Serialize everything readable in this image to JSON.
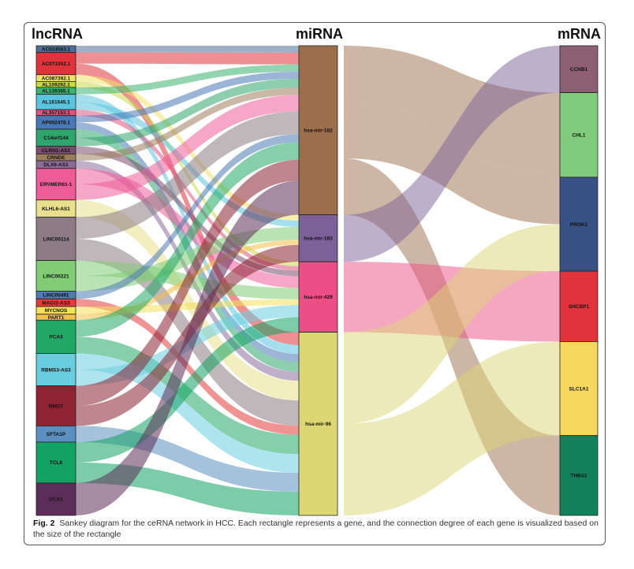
{
  "titles": {
    "lncrna": "lncRNA",
    "mirna": "miRNA",
    "mrna": "mRNA"
  },
  "caption": {
    "label": "Fig. 2",
    "text": "Sankey diagram for the ceRNA network in HCC. Each rectangle represents a gene, and the connection degree of each gene is visualized based on the size of the rectangle"
  },
  "chart_data": {
    "type": "sankey",
    "lncrna": [
      {
        "name": "AC024563.1",
        "color": "#4f6d97"
      },
      {
        "name": "AC073352.1",
        "color": "#e0333b"
      },
      {
        "name": "AC087392.1",
        "color": "#f2e06a"
      },
      {
        "name": "AL109292.1",
        "color": "#c8d84c"
      },
      {
        "name": "AL139385.1",
        "color": "#3cb371"
      },
      {
        "name": "AL161645.1",
        "color": "#5bc4df"
      },
      {
        "name": "AL357153.1",
        "color": "#e05580"
      },
      {
        "name": "AP002478.1",
        "color": "#4a78b6"
      },
      {
        "name": "C14orf144",
        "color": "#2fa56e"
      },
      {
        "name": "CLRN1-AS1",
        "color": "#7a4c6e"
      },
      {
        "name": "CRNDE",
        "color": "#9c7d5c"
      },
      {
        "name": "DLX6-AS1",
        "color": "#8c6d9a"
      },
      {
        "name": "ERVMER61-1",
        "color": "#ee5c98"
      },
      {
        "name": "KLHL6-AS1",
        "color": "#e8e08c"
      },
      {
        "name": "LINC00114",
        "color": "#8d7b84"
      },
      {
        "name": "LINC00221",
        "color": "#82cc76"
      },
      {
        "name": "LINC00491",
        "color": "#4f7ab2"
      },
      {
        "name": "MAGI2-AS3",
        "color": "#e33b3b"
      },
      {
        "name": "MYCNOS",
        "color": "#f4e05a"
      },
      {
        "name": "PART1",
        "color": "#f0c04a"
      },
      {
        "name": "PCA3",
        "color": "#21a866"
      },
      {
        "name": "RBMS3-AS3",
        "color": "#69cde0"
      },
      {
        "name": "RMST",
        "color": "#8d2333"
      },
      {
        "name": "SFTA1P",
        "color": "#5a8fbf"
      },
      {
        "name": "TCL6",
        "color": "#12a263"
      },
      {
        "name": "UCA1",
        "color": "#5c2d58"
      }
    ],
    "mirna": [
      {
        "name": "hsa-mir-182",
        "color": "#9c6e4c",
        "weight": 0.36
      },
      {
        "name": "hsa-mir-183",
        "color": "#7b6198",
        "weight": 0.1
      },
      {
        "name": "hsa-mir-429",
        "color": "#ec4f86",
        "weight": 0.15
      },
      {
        "name": "hsa-mir-96",
        "color": "#dcd675",
        "weight": 0.39
      }
    ],
    "mrna": [
      {
        "name": "CCNB1",
        "color": "#8d5f72",
        "weight": 0.1
      },
      {
        "name": "CHL1",
        "color": "#80cc7c",
        "weight": 0.18
      },
      {
        "name": "PROK2",
        "color": "#385286",
        "weight": 0.2
      },
      {
        "name": "SHCBP1",
        "color": "#e0333b",
        "weight": 0.15
      },
      {
        "name": "SLC1A1",
        "color": "#f7d85e",
        "weight": 0.2
      },
      {
        "name": "THBS1",
        "color": "#12805a",
        "weight": 0.17
      }
    ],
    "mirna_to_mrna": [
      {
        "source": "hsa-mir-182",
        "target": "CHL1"
      },
      {
        "source": "hsa-mir-182",
        "target": "PROK2"
      },
      {
        "source": "hsa-mir-182",
        "target": "THBS1"
      },
      {
        "source": "hsa-mir-183",
        "target": "CCNB1"
      },
      {
        "source": "hsa-mir-429",
        "target": "SHCBP1"
      },
      {
        "source": "hsa-mir-96",
        "target": "PROK2"
      },
      {
        "source": "hsa-mir-96",
        "target": "SLC1A1"
      }
    ]
  }
}
